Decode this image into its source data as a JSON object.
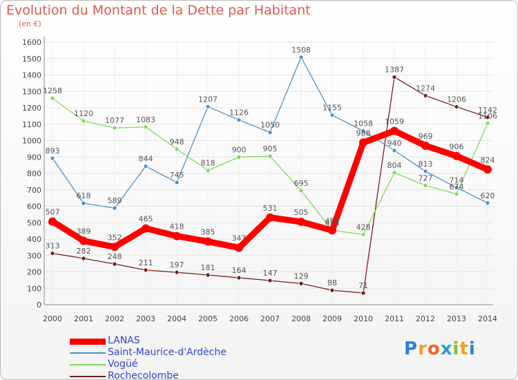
{
  "chart_data": {
    "type": "line",
    "title": "Evolution du Montant de la Dette par Habitant",
    "subtitle": "(en €)",
    "categories": [
      "2000",
      "2001",
      "2002",
      "2003",
      "2004",
      "2005",
      "2006",
      "2007",
      "2008",
      "2009",
      "2010",
      "2011",
      "2012",
      "2013",
      "2014"
    ],
    "ylim": [
      0,
      1600
    ],
    "yticks": [
      0,
      100,
      200,
      300,
      400,
      500,
      600,
      700,
      800,
      900,
      1000,
      1100,
      1200,
      1300,
      1400,
      1500,
      1600
    ],
    "grid": true,
    "legend_position": "bottom-left",
    "series": [
      {
        "name": "LANAS",
        "color": "#ff0000",
        "values": [
          507,
          389,
          352,
          465,
          418,
          385,
          347,
          531,
          505,
          453,
          988,
          1059,
          969,
          906,
          824
        ]
      },
      {
        "name": "Saint-Maurice-d'Ardèche",
        "color": "#4a90c8",
        "values": [
          893,
          618,
          589,
          844,
          745,
          1207,
          1126,
          1050,
          1508,
          1155,
          1058,
          940,
          813,
          714,
          620
        ]
      },
      {
        "name": "Vogüé",
        "color": "#7ed957",
        "values": [
          1258,
          1120,
          1077,
          1083,
          948,
          818,
          900,
          905,
          695,
          453,
          428,
          804,
          727,
          674,
          1106
        ]
      },
      {
        "name": "Rochecolombe",
        "color": "#7a1a1a",
        "values": [
          313,
          282,
          248,
          211,
          197,
          181,
          164,
          147,
          129,
          88,
          71,
          1387,
          1274,
          1206,
          1142
        ]
      }
    ]
  },
  "logo": {
    "text": "Proxiti",
    "letter_colors": [
      "#2a7fd4",
      "#f0a020",
      "#f06020",
      "#2a9fd4",
      "#80c030",
      "#f0a020",
      "#2a7fd4"
    ]
  }
}
